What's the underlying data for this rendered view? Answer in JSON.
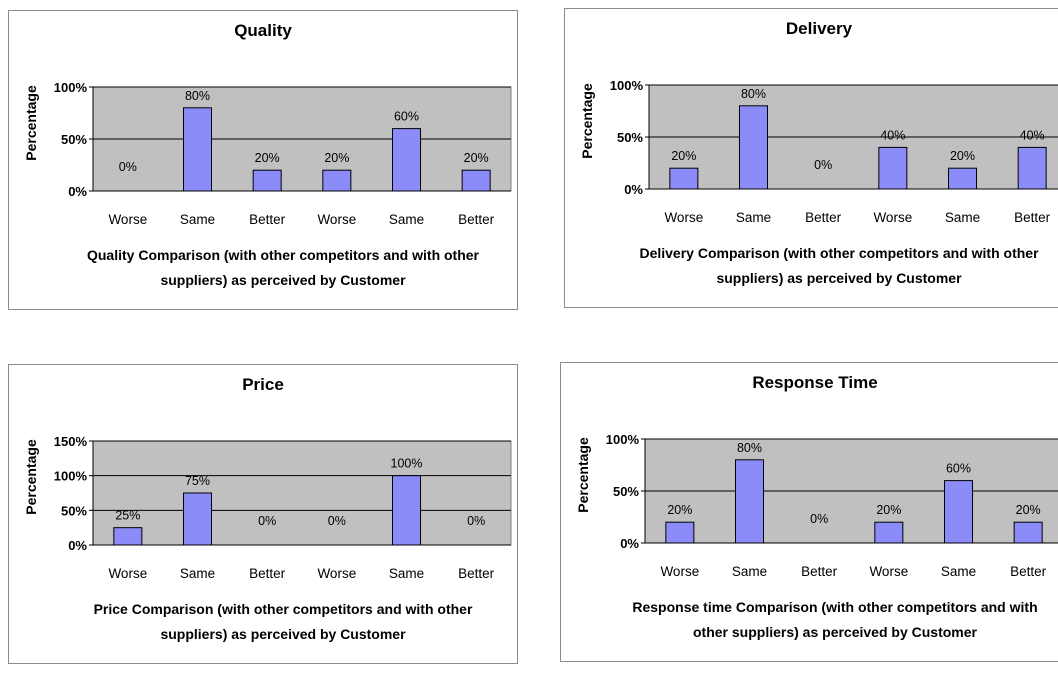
{
  "chart_data": [
    {
      "type": "bar",
      "title": "Quality",
      "ylabel": "Percentage",
      "xlabel": "Quality Comparison (with other competitors and with other suppliers) as perceived by Customer",
      "categories": [
        "Worse",
        "Same",
        "Better",
        "Worse",
        "Same",
        "Better"
      ],
      "values": [
        0,
        80,
        20,
        20,
        60,
        20
      ],
      "data_labels": [
        "0%",
        "80%",
        "20%",
        "20%",
        "60%",
        "20%"
      ],
      "yticks": [
        "0%",
        "50%",
        "100%"
      ],
      "ylim": [
        0,
        100
      ],
      "grid": true,
      "colors": {
        "bar": "#8c8cf8",
        "plot_bg": "#c0c0c0"
      }
    },
    {
      "type": "bar",
      "title": "Delivery",
      "ylabel": "Percentage",
      "xlabel": "Delivery Comparison (with other competitors and with other suppliers) as perceived by Customer",
      "categories": [
        "Worse",
        "Same",
        "Better",
        "Worse",
        "Same",
        "Better"
      ],
      "values": [
        20,
        80,
        0,
        40,
        20,
        40
      ],
      "data_labels": [
        "20%",
        "80%",
        "0%",
        "40%",
        "20%",
        "40%"
      ],
      "yticks": [
        "0%",
        "50%",
        "100%"
      ],
      "ylim": [
        0,
        100
      ],
      "grid": true,
      "colors": {
        "bar": "#8c8cf8",
        "plot_bg": "#c0c0c0"
      }
    },
    {
      "type": "bar",
      "title": "Price",
      "ylabel": "Percentage",
      "xlabel": "Price Comparison (with other competitors and with other suppliers) as perceived by Customer",
      "categories": [
        "Worse",
        "Same",
        "Better",
        "Worse",
        "Same",
        "Better"
      ],
      "values": [
        25,
        75,
        0,
        0,
        100,
        0
      ],
      "data_labels": [
        "25%",
        "75%",
        "0%",
        "0%",
        "100%",
        "0%"
      ],
      "yticks": [
        "0%",
        "50%",
        "100%",
        "150%"
      ],
      "ylim": [
        0,
        150
      ],
      "grid": true,
      "colors": {
        "bar": "#8c8cf8",
        "plot_bg": "#c0c0c0"
      }
    },
    {
      "type": "bar",
      "title": "Response Time",
      "ylabel": "Percentage",
      "xlabel": "Response time Comparison (with other competitors and with other suppliers) as perceived by Customer",
      "categories": [
        "Worse",
        "Same",
        "Better",
        "Worse",
        "Same",
        "Better"
      ],
      "values": [
        20,
        80,
        0,
        20,
        60,
        20
      ],
      "data_labels": [
        "20%",
        "80%",
        "0%",
        "20%",
        "60%",
        "20%"
      ],
      "yticks": [
        "0%",
        "50%",
        "100%"
      ],
      "ylim": [
        0,
        100
      ],
      "grid": true,
      "colors": {
        "bar": "#8c8cf8",
        "plot_bg": "#c0c0c0"
      }
    }
  ]
}
